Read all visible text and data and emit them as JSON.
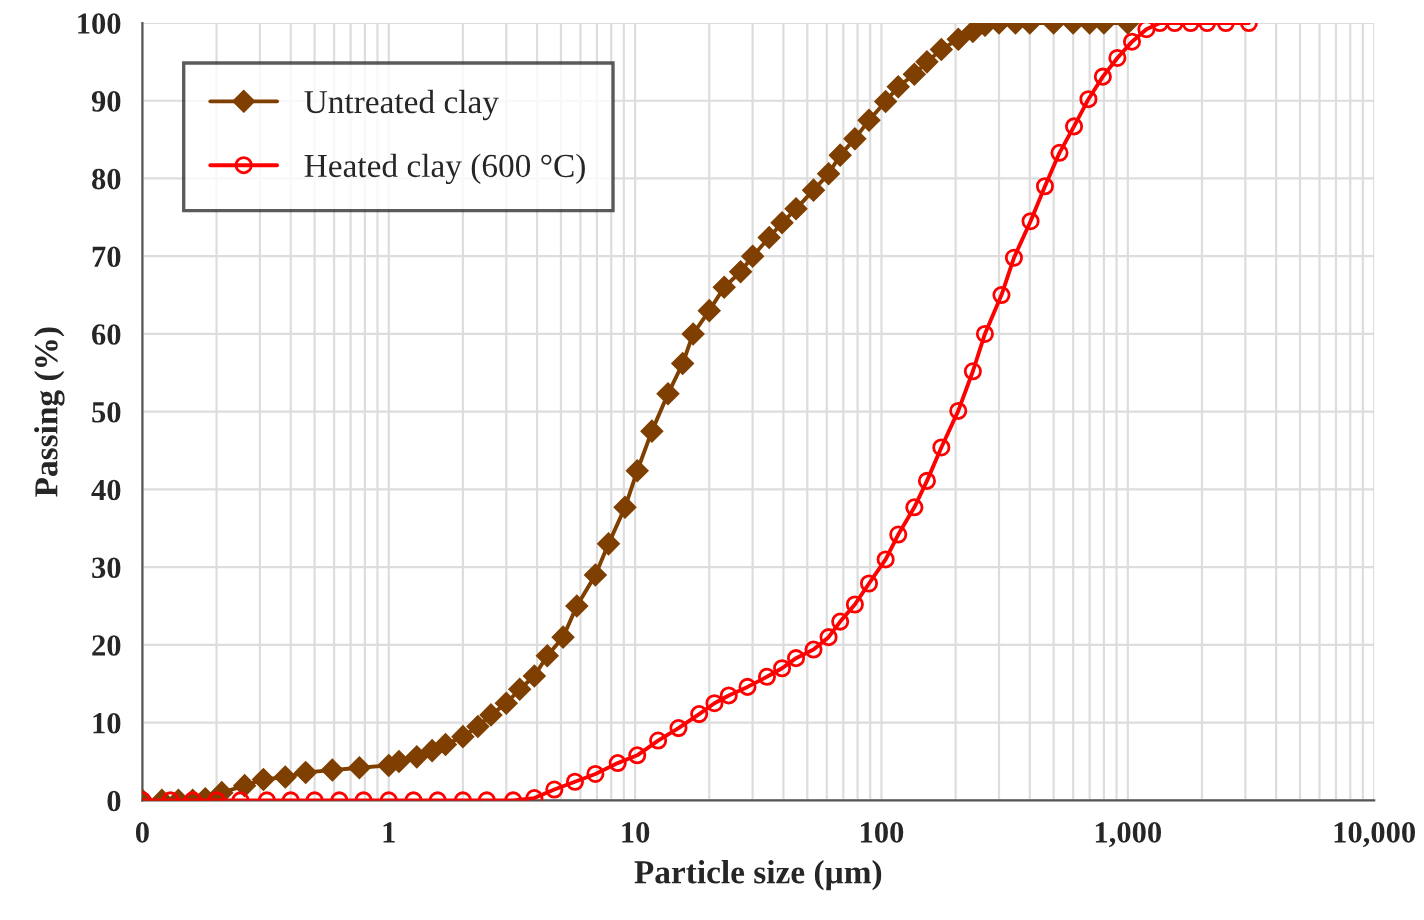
{
  "chart_data": {
    "type": "line",
    "xlabel": "Particle size (µm)",
    "ylabel": "Passing (%)",
    "log": "x",
    "xlim": [
      0.1,
      10000
    ],
    "xticks": [
      {
        "value": 0.1,
        "label": "0"
      },
      1,
      10,
      100,
      {
        "value": 1000,
        "label": "1,000"
      },
      {
        "value": 10000,
        "label": "10,000"
      }
    ],
    "ylim": [
      0,
      100
    ],
    "yticks": [
      0,
      10,
      20,
      30,
      40,
      50,
      60,
      70,
      80,
      90,
      100
    ],
    "grid": true,
    "legend": "top left",
    "line_style": "solid",
    "series": [
      {
        "name": "Untreated clay",
        "color": "#7f3f00",
        "marker": "diamond",
        "x": [
          0.1,
          0.12,
          0.14,
          0.16,
          0.18,
          0.21,
          0.26,
          0.31,
          0.38,
          0.46,
          0.59,
          0.76,
          1,
          1.1,
          1.3,
          1.5,
          1.7,
          2.0,
          2.3,
          2.6,
          3.0,
          3.4,
          3.9,
          4.4,
          5.1,
          5.8,
          6.9,
          7.8,
          9.1,
          10.2,
          11.7,
          13.6,
          15.6,
          17.2,
          20,
          23,
          26.8,
          30,
          35,
          39.5,
          45,
          53,
          61,
          68,
          78,
          89,
          104,
          117,
          136,
          153,
          175,
          205,
          235,
          263,
          300,
          350,
          400,
          500,
          600,
          700,
          800,
          1000
        ],
        "values": [
          0,
          0,
          0,
          0,
          0.2,
          1.0,
          1.9,
          2.7,
          3.0,
          3.6,
          3.9,
          4.2,
          4.5,
          5,
          5.6,
          6.4,
          7.2,
          8.2,
          9.5,
          11,
          12.5,
          14.3,
          16,
          18.6,
          21,
          25,
          29,
          33,
          37.7,
          42.4,
          47.5,
          52.3,
          56.2,
          60,
          63,
          66,
          68,
          70,
          72.4,
          74.3,
          76.1,
          78.5,
          80.6,
          83,
          85.1,
          87.5,
          89.9,
          91.8,
          93.4,
          95,
          96.6,
          97.9,
          98.9,
          99.7,
          100,
          100,
          100,
          100,
          100,
          100,
          100,
          100
        ]
      },
      {
        "name": "Heated clay (600 °C)",
        "color": "#ff0000",
        "marker": "circle",
        "x": [
          0.1,
          0.13,
          0.16,
          0.2,
          0.25,
          0.32,
          0.4,
          0.5,
          0.63,
          0.79,
          1,
          1.26,
          1.58,
          2,
          2.5,
          3.2,
          3.9,
          4.7,
          5.7,
          6.9,
          8.5,
          10.2,
          12.4,
          15,
          18.2,
          21,
          24,
          28.6,
          34.3,
          39.5,
          45,
          53,
          61,
          68,
          78,
          89,
          104,
          117,
          136,
          153,
          175,
          205,
          235,
          263,
          307,
          345,
          403,
          461,
          528,
          605,
          692,
          792,
          907,
          1040,
          1190,
          1350,
          1550,
          1800,
          2100,
          2500,
          3100
        ],
        "values": [
          0,
          0,
          0,
          0,
          0,
          0,
          0,
          0,
          0,
          0,
          0,
          0,
          0,
          0,
          0,
          0,
          0.3,
          1.4,
          2.4,
          3.4,
          4.8,
          5.8,
          7.7,
          9.3,
          11.1,
          12.5,
          13.5,
          14.6,
          15.9,
          17,
          18.3,
          19.4,
          21,
          23,
          25.2,
          27.9,
          31,
          34.2,
          37.7,
          41.1,
          45.4,
          50.1,
          55.2,
          60,
          65,
          69.8,
          74.5,
          79,
          83.3,
          86.7,
          90.2,
          93.1,
          95.5,
          97.6,
          99.2,
          100,
          100,
          100,
          100,
          100,
          100
        ]
      }
    ]
  }
}
